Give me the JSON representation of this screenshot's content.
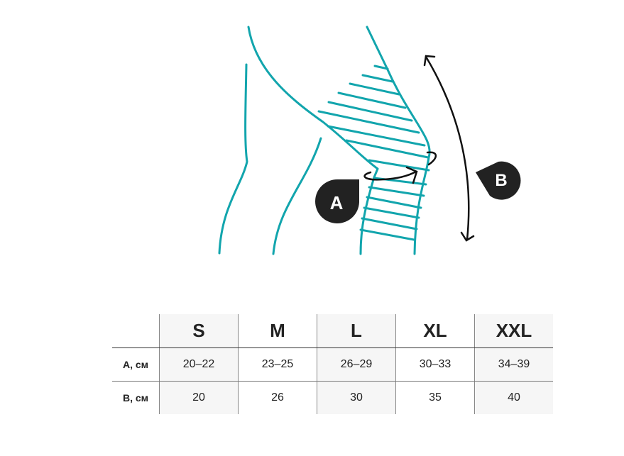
{
  "diagram": {
    "labels": {
      "a": "A",
      "b": "B"
    },
    "colors": {
      "outline": "#12a5ad",
      "badge": "#222222",
      "arrow": "#111111"
    }
  },
  "table": {
    "sizes": [
      "S",
      "M",
      "L",
      "XL",
      "XXL"
    ],
    "rows": [
      {
        "label": "A, см",
        "values": [
          "20–22",
          "23–25",
          "26–29",
          "30–33",
          "34–39"
        ]
      },
      {
        "label": "B, см",
        "values": [
          "20",
          "26",
          "30",
          "35",
          "40"
        ]
      }
    ]
  }
}
